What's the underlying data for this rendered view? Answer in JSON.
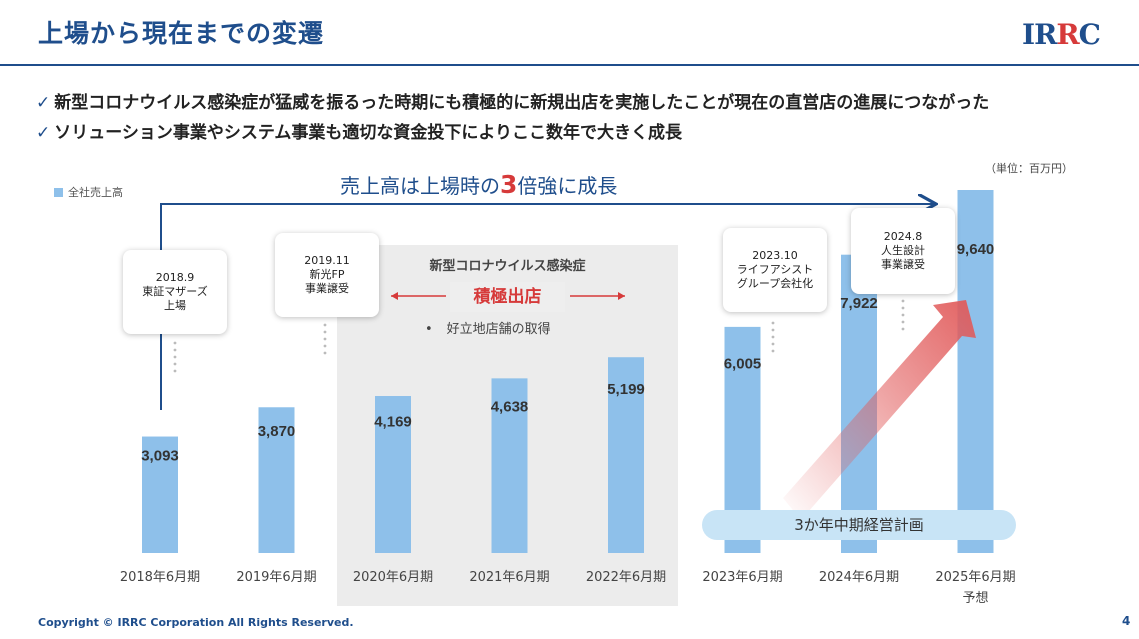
{
  "header": {
    "title": "上場から現在までの変遷",
    "logo_pre": "IR",
    "logo_accent": "R",
    "logo_post": "C"
  },
  "bullets": [
    "新型コロナウイルス感染症が猛威を振るった時期にも積極的に新規出店を実施したことが現在の直営店の進展につながった",
    "ソリューション事業やシステム事業も適切な資金投下によりここ数年で大きく成長"
  ],
  "check_glyph": "✓",
  "headline": {
    "pre": "売上高は上場時の",
    "big": "3",
    "post": "倍強に成長"
  },
  "unit": "（単位：百万円）",
  "covid": {
    "title": "新型コロナウイルス感染症",
    "label": "積極出店",
    "bullet": "好立地店舗の取得",
    "dot": "•"
  },
  "callouts": [
    {
      "line1": "2018.9",
      "line2": "東証マザーズ",
      "line3": "上場"
    },
    {
      "line1": "2019.11",
      "line2": "新光FP",
      "line3": "事業譲受"
    },
    {
      "line1": "2023.10",
      "line2": "ライフアシスト",
      "line3": "グループ会社化"
    },
    {
      "line1": "2024.8",
      "line2": "人生設計",
      "line3": "事業譲受"
    }
  ],
  "plan_label": "3か年中期経営計画",
  "footer": {
    "copyright": "Copyright © IRRC Corporation All Rights Reserved.",
    "page": "4"
  },
  "colors": {
    "bar": "#8ec0ea",
    "accent_blue": "#1f4e8c",
    "accent_red": "#d63a3a"
  },
  "chart_data": {
    "type": "bar",
    "categories": [
      "2018年6月期",
      "2019年6月期",
      "2020年6月期",
      "2021年6月期",
      "2022年6月期",
      "2023年6月期",
      "2024年6月期",
      "2025年6月期"
    ],
    "category_notes": [
      "",
      "",
      "",
      "",
      "",
      "",
      "",
      "予想"
    ],
    "series": [
      {
        "name": "全社売上高",
        "values": [
          3093,
          3870,
          4169,
          4638,
          5199,
          6005,
          7922,
          9640
        ]
      }
    ],
    "value_labels": [
      "3,093",
      "3,870",
      "4,169",
      "4,638",
      "5,199",
      "6,005",
      "7,922",
      "9,640"
    ],
    "ylim": [
      0,
      9640
    ],
    "grid": false,
    "legend": "top-left"
  }
}
